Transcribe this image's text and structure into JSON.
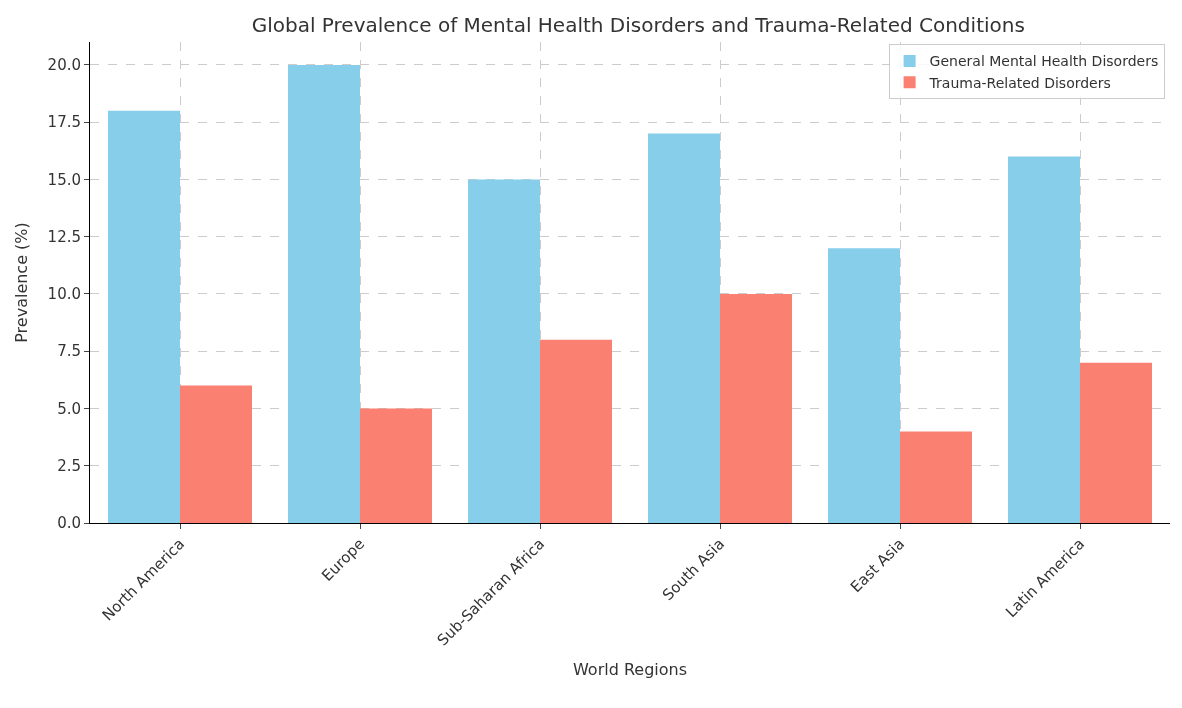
{
  "chart_data": {
    "type": "bar",
    "title": "Global Prevalence of Mental Health Disorders and Trauma-Related Conditions",
    "xlabel": "World Regions",
    "ylabel": "Prevalence (%)",
    "categories": [
      "North America",
      "Europe",
      "Sub-Saharan Africa",
      "South Asia",
      "East Asia",
      "Latin America"
    ],
    "series": [
      {
        "name": "General Mental Health Disorders",
        "color": "#87ceeb",
        "values": [
          18,
          20,
          15,
          17,
          12,
          16
        ]
      },
      {
        "name": "Trauma-Related Disorders",
        "color": "#fa8072",
        "values": [
          6,
          5,
          8,
          10,
          4,
          7
        ]
      }
    ],
    "ylim": [
      0,
      21
    ],
    "yticks": [
      {
        "value": 0,
        "label": "0.0"
      },
      {
        "value": 2.5,
        "label": "2.5"
      },
      {
        "value": 5,
        "label": "5.0"
      },
      {
        "value": 7.5,
        "label": "7.5"
      },
      {
        "value": 10,
        "label": "10.0"
      },
      {
        "value": 12.5,
        "label": "12.5"
      },
      {
        "value": 15,
        "label": "15.0"
      },
      {
        "value": 17.5,
        "label": "17.5"
      },
      {
        "value": 20,
        "label": "20.0"
      }
    ],
    "grid": true,
    "legend": "top right"
  }
}
